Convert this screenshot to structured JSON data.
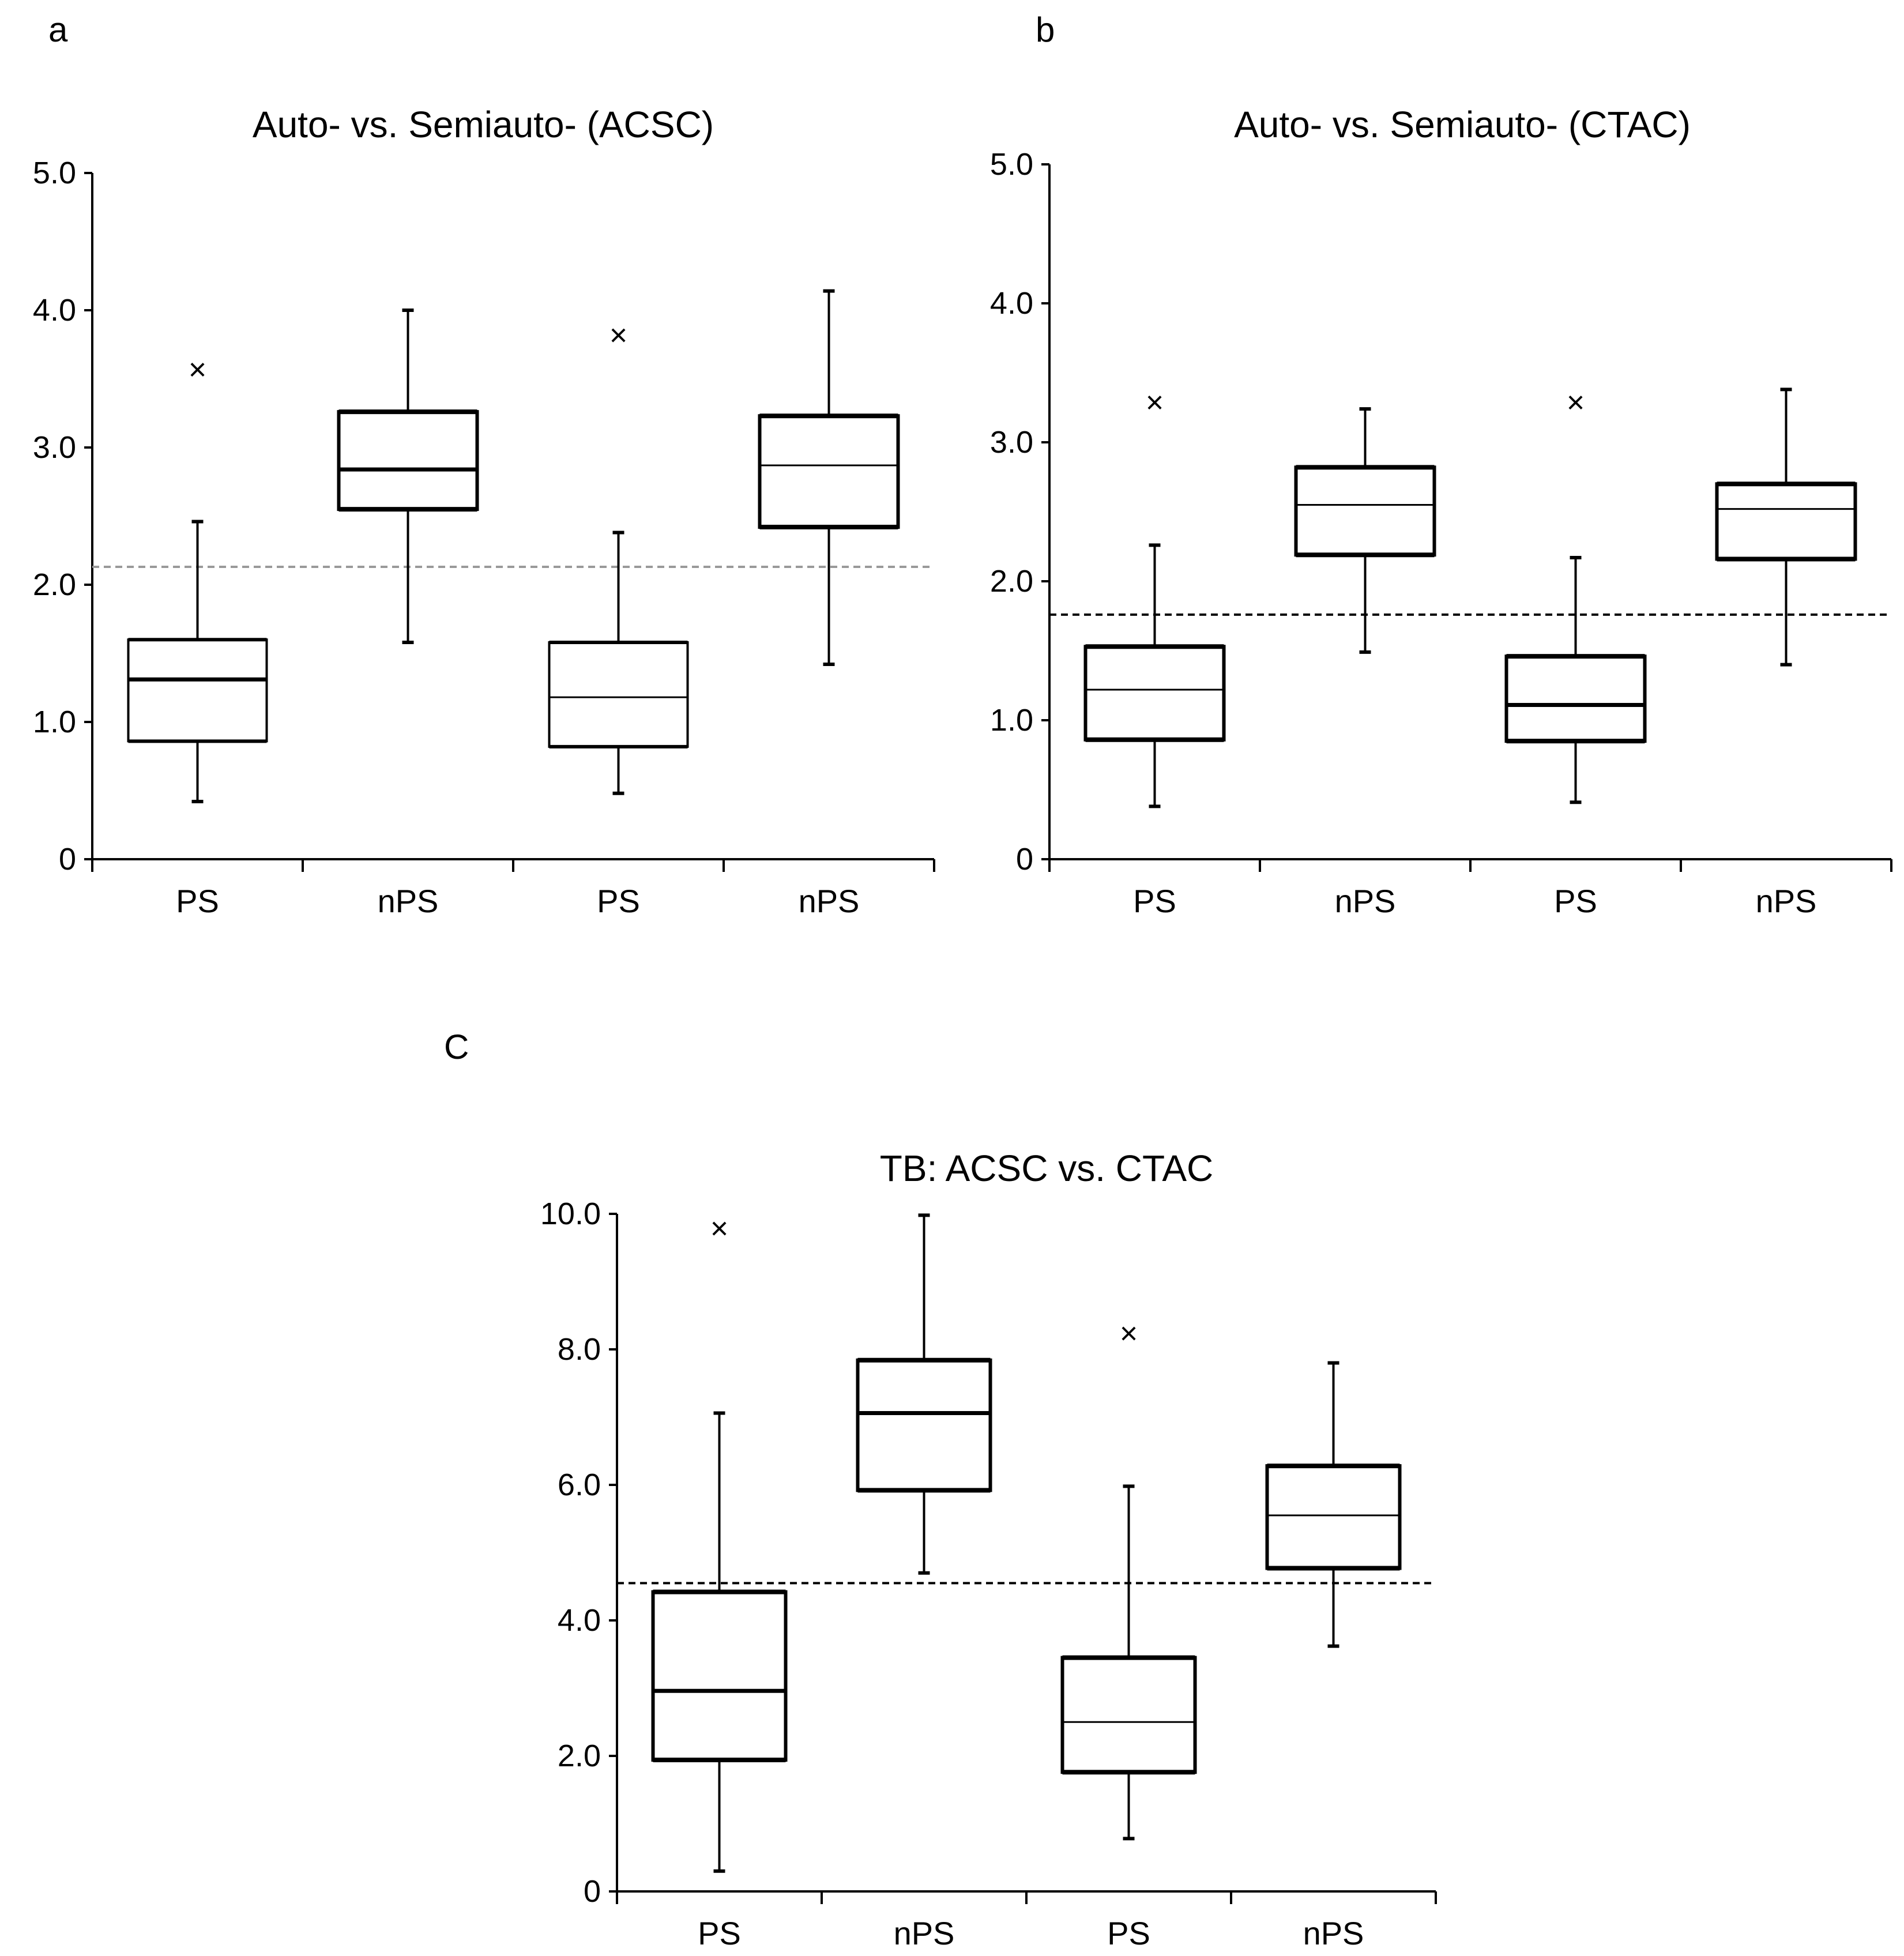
{
  "panels": [
    {
      "id": "a",
      "label": "a"
    },
    {
      "id": "b",
      "label": "b"
    },
    {
      "id": "c",
      "label": "C"
    }
  ],
  "chart_data": [
    {
      "panel": "a",
      "type": "box",
      "title": "Auto- vs. Semiauto- (ACSC)",
      "categories": [
        "PS",
        "nPS",
        "PS",
        "nPS"
      ],
      "ylim": [
        0,
        5.0
      ],
      "yticks": [
        0,
        1.0,
        2.0,
        3.0,
        4.0,
        5.0
      ],
      "ytick_labels": [
        "0",
        "1.0",
        "2.0",
        "3.0",
        "4.0",
        "5.0"
      ],
      "threshold": 2.13,
      "threshold_color": "#999999",
      "boxes": [
        {
          "category": "PS",
          "whisker_low": 0.42,
          "q1": 0.86,
          "median": 1.31,
          "q3": 1.6,
          "whisker_high": 2.46,
          "outliers": [
            3.55
          ]
        },
        {
          "category": "nPS",
          "whisker_low": 1.58,
          "q1": 2.55,
          "median": 2.84,
          "q3": 3.26,
          "whisker_high": 4.0,
          "outliers": []
        },
        {
          "category": "PS",
          "whisker_low": 0.48,
          "q1": 0.82,
          "median": 1.18,
          "q3": 1.58,
          "whisker_high": 2.38,
          "outliers": [
            3.8
          ]
        },
        {
          "category": "nPS",
          "whisker_low": 1.42,
          "q1": 2.42,
          "median": 2.87,
          "q3": 3.23,
          "whisker_high": 4.14,
          "outliers": []
        }
      ]
    },
    {
      "panel": "b",
      "type": "box",
      "title": "Auto- vs. Semiauto- (CTAC)",
      "categories": [
        "PS",
        "nPS",
        "PS",
        "nPS"
      ],
      "ylim": [
        0,
        5.0
      ],
      "yticks": [
        0,
        1.0,
        2.0,
        3.0,
        4.0,
        5.0
      ],
      "ytick_labels": [
        "0",
        "1.0",
        "2.0",
        "3.0",
        "4.0",
        "5.0"
      ],
      "threshold": 1.76,
      "threshold_color": "#000000",
      "boxes": [
        {
          "category": "PS",
          "whisker_low": 0.38,
          "q1": 0.86,
          "median": 1.22,
          "q3": 1.53,
          "whisker_high": 2.26,
          "outliers": [
            3.27
          ]
        },
        {
          "category": "nPS",
          "whisker_low": 1.49,
          "q1": 2.19,
          "median": 2.55,
          "q3": 2.82,
          "whisker_high": 3.24,
          "outliers": []
        },
        {
          "category": "PS",
          "whisker_low": 0.41,
          "q1": 0.85,
          "median": 1.11,
          "q3": 1.46,
          "whisker_high": 2.17,
          "outliers": [
            3.27
          ]
        },
        {
          "category": "nPS",
          "whisker_low": 1.4,
          "q1": 2.16,
          "median": 2.52,
          "q3": 2.7,
          "whisker_high": 3.38,
          "outliers": []
        }
      ]
    },
    {
      "panel": "c",
      "type": "box",
      "title": "TB: ACSC vs. CTAC",
      "categories": [
        "PS",
        "nPS",
        "PS",
        "nPS"
      ],
      "ylim": [
        0,
        10.0
      ],
      "yticks": [
        0,
        2.0,
        4.0,
        6.0,
        8.0,
        10.0
      ],
      "ytick_labels": [
        "0",
        "2.0",
        "4.0",
        "6.0",
        "8.0",
        "10.0"
      ],
      "threshold": 4.55,
      "threshold_color": "#000000",
      "boxes": [
        {
          "category": "PS",
          "whisker_low": 0.3,
          "q1": 1.94,
          "median": 2.96,
          "q3": 4.42,
          "whisker_high": 7.06,
          "outliers": [
            9.75
          ]
        },
        {
          "category": "nPS",
          "whisker_low": 4.7,
          "q1": 5.92,
          "median": 7.06,
          "q3": 7.84,
          "whisker_high": 9.98,
          "outliers": []
        },
        {
          "category": "PS",
          "whisker_low": 0.78,
          "q1": 1.76,
          "median": 2.5,
          "q3": 3.45,
          "whisker_high": 5.98,
          "outliers": [
            8.2
          ]
        },
        {
          "category": "nPS",
          "whisker_low": 3.62,
          "q1": 4.77,
          "median": 5.55,
          "q3": 6.28,
          "whisker_high": 7.8,
          "outliers": []
        }
      ]
    }
  ]
}
